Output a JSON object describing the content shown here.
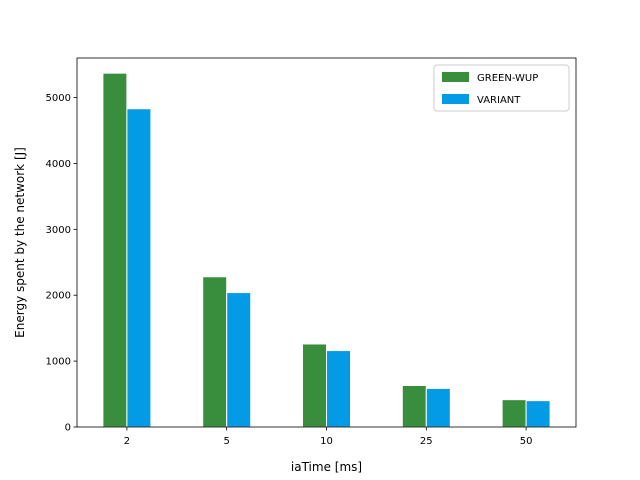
{
  "chart_data": {
    "type": "bar",
    "title": "",
    "xlabel": "iaTime [ms]",
    "ylabel": "Energy spent by the network [J]",
    "categories": [
      "2",
      "5",
      "10",
      "25",
      "50"
    ],
    "series": [
      {
        "name": "GREEN-WUP",
        "color": "#388e3c",
        "values": [
          5370,
          2280,
          1260,
          630,
          415
        ]
      },
      {
        "name": "VARIANT",
        "color": "#039be5",
        "values": [
          4830,
          2040,
          1160,
          585,
          400
        ]
      }
    ],
    "ylim": [
      0,
      5600
    ],
    "yticks": [
      0,
      1000,
      2000,
      3000,
      4000,
      5000
    ],
    "grid": false,
    "legend": "top-right"
  }
}
